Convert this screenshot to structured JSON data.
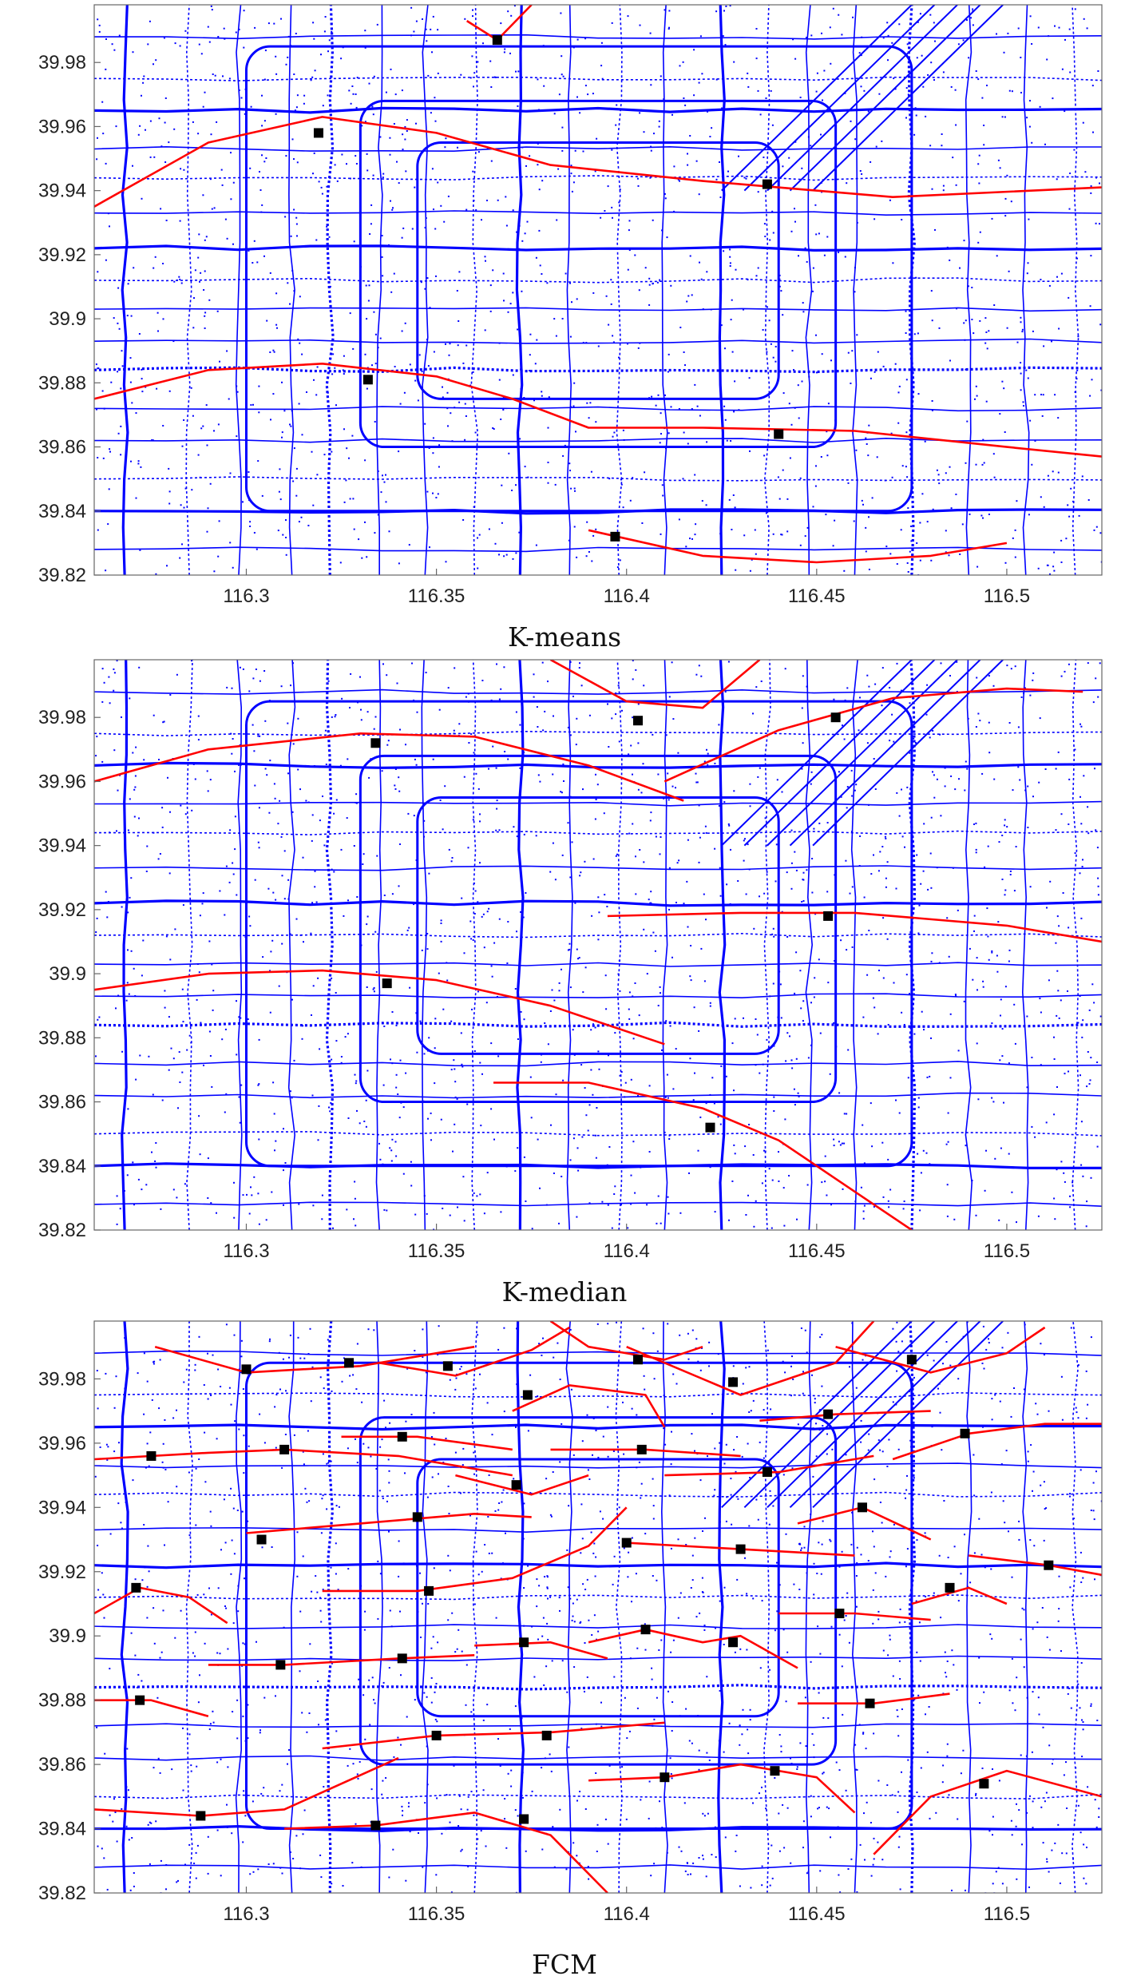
{
  "chart_data": [
    {
      "type": "scatter",
      "title": "K-means",
      "xlim": [
        116.26,
        116.525
      ],
      "ylim": [
        39.82,
        39.998
      ],
      "xticks": [
        "116.3",
        "116.35",
        "116.4",
        "116.45",
        "116.5"
      ],
      "yticks": [
        "39.82",
        "39.84",
        "39.86",
        "39.88",
        "39.9",
        "39.92",
        "39.94",
        "39.96",
        "39.98"
      ],
      "colors": {
        "points": "#0000ff",
        "curves": "#ff0000",
        "centers": "#000000"
      },
      "centers": [
        {
          "x": 116.366,
          "y": 39.987
        },
        {
          "x": 116.319,
          "y": 39.958
        },
        {
          "x": 116.437,
          "y": 39.942
        },
        {
          "x": 116.332,
          "y": 39.881
        },
        {
          "x": 116.44,
          "y": 39.864
        },
        {
          "x": 116.397,
          "y": 39.832
        }
      ],
      "curves": [
        [
          [
            116.26,
            39.935
          ],
          [
            116.29,
            39.955
          ],
          [
            116.32,
            39.963
          ],
          [
            116.35,
            39.958
          ],
          [
            116.38,
            39.948
          ],
          [
            116.42,
            39.943
          ],
          [
            116.47,
            39.938
          ],
          [
            116.525,
            39.941
          ]
        ],
        [
          [
            116.26,
            39.875
          ],
          [
            116.29,
            39.884
          ],
          [
            116.32,
            39.886
          ],
          [
            116.35,
            39.882
          ],
          [
            116.37,
            39.875
          ],
          [
            116.39,
            39.866
          ],
          [
            116.42,
            39.866
          ],
          [
            116.46,
            39.865
          ],
          [
            116.5,
            39.86
          ],
          [
            116.525,
            39.857
          ]
        ],
        [
          [
            116.39,
            39.834
          ],
          [
            116.42,
            39.826
          ],
          [
            116.45,
            39.824
          ],
          [
            116.48,
            39.826
          ],
          [
            116.5,
            39.83
          ]
        ],
        [
          [
            116.358,
            39.993
          ],
          [
            116.366,
            39.987
          ],
          [
            116.375,
            39.998
          ]
        ]
      ]
    },
    {
      "type": "scatter",
      "title": "K-median",
      "xlim": [
        116.26,
        116.525
      ],
      "ylim": [
        39.82,
        39.998
      ],
      "xticks": [
        "116.3",
        "116.35",
        "116.4",
        "116.45",
        "116.5"
      ],
      "yticks": [
        "39.82",
        "39.84",
        "39.86",
        "39.88",
        "39.9",
        "39.92",
        "39.94",
        "39.96",
        "39.98"
      ],
      "colors": {
        "points": "#0000ff",
        "curves": "#ff0000",
        "centers": "#000000"
      },
      "centers": [
        {
          "x": 116.403,
          "y": 39.979
        },
        {
          "x": 116.455,
          "y": 39.98
        },
        {
          "x": 116.334,
          "y": 39.972
        },
        {
          "x": 116.453,
          "y": 39.918
        },
        {
          "x": 116.337,
          "y": 39.897
        },
        {
          "x": 116.422,
          "y": 39.852
        }
      ],
      "curves": [
        [
          [
            116.26,
            39.96
          ],
          [
            116.29,
            39.97
          ],
          [
            116.33,
            39.975
          ],
          [
            116.36,
            39.974
          ],
          [
            116.39,
            39.965
          ],
          [
            116.415,
            39.954
          ]
        ],
        [
          [
            116.41,
            39.96
          ],
          [
            116.44,
            39.976
          ],
          [
            116.47,
            39.986
          ],
          [
            116.5,
            39.989
          ],
          [
            116.52,
            39.988
          ]
        ],
        [
          [
            116.38,
            39.998
          ],
          [
            116.4,
            39.985
          ],
          [
            116.42,
            39.983
          ],
          [
            116.435,
            39.998
          ]
        ],
        [
          [
            116.26,
            39.895
          ],
          [
            116.29,
            39.9
          ],
          [
            116.32,
            39.901
          ],
          [
            116.35,
            39.898
          ],
          [
            116.38,
            39.89
          ],
          [
            116.41,
            39.878
          ]
        ],
        [
          [
            116.395,
            39.918
          ],
          [
            116.43,
            39.919
          ],
          [
            116.46,
            39.919
          ],
          [
            116.5,
            39.915
          ],
          [
            116.525,
            39.91
          ]
        ],
        [
          [
            116.365,
            39.866
          ],
          [
            116.39,
            39.866
          ],
          [
            116.42,
            39.858
          ],
          [
            116.44,
            39.848
          ],
          [
            116.46,
            39.832
          ],
          [
            116.475,
            39.82
          ]
        ]
      ]
    },
    {
      "type": "scatter",
      "title": "FCM",
      "xlim": [
        116.26,
        116.525
      ],
      "ylim": [
        39.82,
        39.998
      ],
      "xticks": [
        "116.3",
        "116.35",
        "116.4",
        "116.45",
        "116.5"
      ],
      "yticks": [
        "39.82",
        "39.84",
        "39.86",
        "39.88",
        "39.9",
        "39.92",
        "39.94",
        "39.96",
        "39.98"
      ],
      "colors": {
        "points": "#0000ff",
        "curves": "#ff0000",
        "centers": "#000000"
      },
      "centers": [
        {
          "x": 116.3,
          "y": 39.983
        },
        {
          "x": 116.327,
          "y": 39.985
        },
        {
          "x": 116.353,
          "y": 39.984
        },
        {
          "x": 116.403,
          "y": 39.986
        },
        {
          "x": 116.428,
          "y": 39.979
        },
        {
          "x": 116.475,
          "y": 39.986
        },
        {
          "x": 116.374,
          "y": 39.975
        },
        {
          "x": 116.453,
          "y": 39.969
        },
        {
          "x": 116.275,
          "y": 39.956
        },
        {
          "x": 116.31,
          "y": 39.958
        },
        {
          "x": 116.341,
          "y": 39.962
        },
        {
          "x": 116.404,
          "y": 39.958
        },
        {
          "x": 116.489,
          "y": 39.963
        },
        {
          "x": 116.371,
          "y": 39.947
        },
        {
          "x": 116.437,
          "y": 39.951
        },
        {
          "x": 116.345,
          "y": 39.937
        },
        {
          "x": 116.462,
          "y": 39.94
        },
        {
          "x": 116.304,
          "y": 39.93
        },
        {
          "x": 116.4,
          "y": 39.929
        },
        {
          "x": 116.43,
          "y": 39.927
        },
        {
          "x": 116.511,
          "y": 39.922
        },
        {
          "x": 116.271,
          "y": 39.915
        },
        {
          "x": 116.348,
          "y": 39.914
        },
        {
          "x": 116.485,
          "y": 39.915
        },
        {
          "x": 116.456,
          "y": 39.907
        },
        {
          "x": 116.405,
          "y": 39.902
        },
        {
          "x": 116.373,
          "y": 39.898
        },
        {
          "x": 116.428,
          "y": 39.898
        },
        {
          "x": 116.341,
          "y": 39.893
        },
        {
          "x": 116.309,
          "y": 39.891
        },
        {
          "x": 116.272,
          "y": 39.88
        },
        {
          "x": 116.464,
          "y": 39.879
        },
        {
          "x": 116.35,
          "y": 39.869
        },
        {
          "x": 116.379,
          "y": 39.869
        },
        {
          "x": 116.41,
          "y": 39.856
        },
        {
          "x": 116.439,
          "y": 39.858
        },
        {
          "x": 116.494,
          "y": 39.854
        },
        {
          "x": 116.288,
          "y": 39.844
        },
        {
          "x": 116.334,
          "y": 39.841
        },
        {
          "x": 116.373,
          "y": 39.843
        }
      ],
      "curves": [
        [
          [
            116.276,
            39.99
          ],
          [
            116.3,
            39.982
          ],
          [
            116.33,
            39.984
          ],
          [
            116.36,
            39.99
          ]
        ],
        [
          [
            116.335,
            39.985
          ],
          [
            116.355,
            39.981
          ],
          [
            116.375,
            39.989
          ],
          [
            116.385,
            39.996
          ]
        ],
        [
          [
            116.38,
            39.998
          ],
          [
            116.39,
            39.99
          ],
          [
            116.41,
            39.986
          ],
          [
            116.42,
            39.99
          ]
        ],
        [
          [
            116.4,
            39.99
          ],
          [
            116.43,
            39.975
          ],
          [
            116.455,
            39.985
          ],
          [
            116.465,
            39.998
          ]
        ],
        [
          [
            116.455,
            39.99
          ],
          [
            116.48,
            39.982
          ],
          [
            116.5,
            39.988
          ],
          [
            116.51,
            39.996
          ]
        ],
        [
          [
            116.37,
            39.97
          ],
          [
            116.385,
            39.978
          ],
          [
            116.405,
            39.975
          ],
          [
            116.41,
            39.965
          ]
        ],
        [
          [
            116.435,
            39.967
          ],
          [
            116.455,
            39.969
          ],
          [
            116.48,
            39.97
          ]
        ],
        [
          [
            116.26,
            39.955
          ],
          [
            116.29,
            39.957
          ],
          [
            116.31,
            39.958
          ],
          [
            116.34,
            39.956
          ],
          [
            116.37,
            39.95
          ]
        ],
        [
          [
            116.325,
            39.962
          ],
          [
            116.345,
            39.962
          ],
          [
            116.37,
            39.958
          ]
        ],
        [
          [
            116.38,
            39.958
          ],
          [
            116.405,
            39.958
          ],
          [
            116.43,
            39.956
          ]
        ],
        [
          [
            116.47,
            39.955
          ],
          [
            116.49,
            39.963
          ],
          [
            116.51,
            39.966
          ],
          [
            116.525,
            39.966
          ]
        ],
        [
          [
            116.355,
            39.95
          ],
          [
            116.375,
            39.944
          ],
          [
            116.39,
            39.95
          ]
        ],
        [
          [
            116.41,
            39.95
          ],
          [
            116.44,
            39.951
          ],
          [
            116.465,
            39.956
          ]
        ],
        [
          [
            116.3,
            39.932
          ],
          [
            116.33,
            39.935
          ],
          [
            116.36,
            39.938
          ],
          [
            116.375,
            39.937
          ]
        ],
        [
          [
            116.4,
            39.929
          ],
          [
            116.43,
            39.927
          ],
          [
            116.46,
            39.925
          ]
        ],
        [
          [
            116.445,
            39.935
          ],
          [
            116.462,
            39.94
          ],
          [
            116.48,
            39.93
          ]
        ],
        [
          [
            116.26,
            39.907
          ],
          [
            116.272,
            39.915
          ],
          [
            116.285,
            39.912
          ],
          [
            116.295,
            39.904
          ]
        ],
        [
          [
            116.32,
            39.914
          ],
          [
            116.345,
            39.914
          ],
          [
            116.37,
            39.918
          ],
          [
            116.39,
            39.928
          ],
          [
            116.4,
            39.94
          ]
        ],
        [
          [
            116.475,
            39.91
          ],
          [
            116.49,
            39.915
          ],
          [
            116.5,
            39.91
          ]
        ],
        [
          [
            116.49,
            39.925
          ],
          [
            116.511,
            39.922
          ],
          [
            116.525,
            39.919
          ]
        ],
        [
          [
            116.44,
            39.907
          ],
          [
            116.46,
            39.907
          ],
          [
            116.48,
            39.905
          ]
        ],
        [
          [
            116.29,
            39.891
          ],
          [
            116.31,
            39.891
          ],
          [
            116.34,
            39.893
          ],
          [
            116.36,
            39.894
          ]
        ],
        [
          [
            116.36,
            39.897
          ],
          [
            116.38,
            39.898
          ],
          [
            116.395,
            39.893
          ]
        ],
        [
          [
            116.39,
            39.898
          ],
          [
            116.405,
            39.902
          ],
          [
            116.42,
            39.898
          ],
          [
            116.43,
            39.9
          ],
          [
            116.445,
            39.89
          ]
        ],
        [
          [
            116.26,
            39.88
          ],
          [
            116.275,
            39.88
          ],
          [
            116.29,
            39.875
          ]
        ],
        [
          [
            116.445,
            39.879
          ],
          [
            116.465,
            39.879
          ],
          [
            116.485,
            39.882
          ]
        ],
        [
          [
            116.32,
            39.865
          ],
          [
            116.35,
            39.869
          ],
          [
            116.38,
            39.87
          ],
          [
            116.41,
            39.873
          ]
        ],
        [
          [
            116.39,
            39.855
          ],
          [
            116.41,
            39.856
          ],
          [
            116.43,
            39.86
          ],
          [
            116.45,
            39.856
          ],
          [
            116.46,
            39.845
          ]
        ],
        [
          [
            116.465,
            39.832
          ],
          [
            116.48,
            39.85
          ],
          [
            116.5,
            39.858
          ],
          [
            116.525,
            39.85
          ]
        ],
        [
          [
            116.26,
            39.846
          ],
          [
            116.288,
            39.844
          ],
          [
            116.31,
            39.846
          ],
          [
            116.34,
            39.862
          ]
        ],
        [
          [
            116.31,
            39.84
          ],
          [
            116.334,
            39.841
          ],
          [
            116.36,
            39.845
          ],
          [
            116.38,
            39.838
          ],
          [
            116.395,
            39.82
          ]
        ]
      ]
    }
  ],
  "captions": [
    "K-means",
    "K-median",
    "FCM"
  ]
}
